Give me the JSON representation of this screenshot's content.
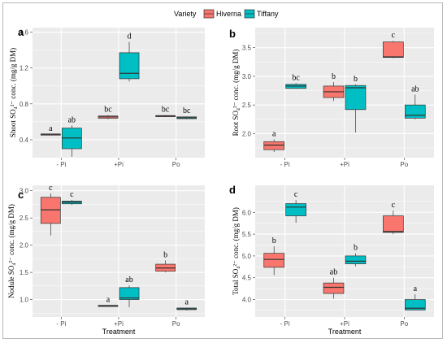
{
  "legend": {
    "title": "Variety",
    "items": [
      {
        "label": "Hiverna",
        "color": "#F8766D"
      },
      {
        "label": "Tiffany",
        "color": "#00BFC4"
      }
    ]
  },
  "colors": {
    "panel_bg": "#EBEBEB",
    "grid": "#FFFFFF",
    "outline": "#333333"
  },
  "chart_data": [
    {
      "type": "box",
      "panel": "a",
      "categories": [
        "- Pi",
        "+Pi",
        "Po"
      ],
      "ylabel": "Shoot SO₄²⁻ conc. (mg/g DM)",
      "xlabel": "",
      "ylim": [
        0.2,
        1.65
      ],
      "yticks": [
        0.4,
        0.8,
        1.2,
        1.6
      ],
      "series": [
        {
          "name": "Hiverna",
          "boxes": [
            {
              "min": 0.455,
              "q1": 0.455,
              "median": 0.46,
              "q3": 0.465,
              "max": 0.465,
              "label": "a"
            },
            {
              "min": 0.63,
              "q1": 0.64,
              "median": 0.655,
              "q3": 0.665,
              "max": 0.675,
              "label": "bc"
            },
            {
              "min": 0.655,
              "q1": 0.66,
              "median": 0.665,
              "q3": 0.67,
              "max": 0.675,
              "label": "bc"
            }
          ]
        },
        {
          "name": "Tiffany",
          "boxes": [
            {
              "min": 0.21,
              "q1": 0.3,
              "median": 0.42,
              "q3": 0.53,
              "max": 0.56,
              "label": "ab"
            },
            {
              "min": 1.05,
              "q1": 1.08,
              "median": 1.14,
              "q3": 1.37,
              "max": 1.49,
              "label": "d"
            },
            {
              "min": 0.63,
              "q1": 0.635,
              "median": 0.645,
              "q3": 0.655,
              "max": 0.66,
              "label": "bc"
            }
          ]
        }
      ]
    },
    {
      "type": "box",
      "panel": "b",
      "categories": [
        "- Pi",
        "+Pi",
        "Po"
      ],
      "ylabel": "Root SO₄²⁻ conc. (mg/g DM)",
      "xlabel": "",
      "ylim": [
        1.58,
        3.85
      ],
      "yticks": [
        2.0,
        2.5,
        3.0,
        3.5
      ],
      "series": [
        {
          "name": "Hiverna",
          "boxes": [
            {
              "min": 1.68,
              "q1": 1.72,
              "median": 1.8,
              "q3": 1.86,
              "max": 1.9,
              "label": "a"
            },
            {
              "min": 2.57,
              "q1": 2.63,
              "median": 2.73,
              "q3": 2.83,
              "max": 2.9,
              "label": "b"
            },
            {
              "min": 3.32,
              "q1": 3.33,
              "median": 3.34,
              "q3": 3.6,
              "max": 3.62,
              "label": "c"
            }
          ]
        },
        {
          "name": "Tiffany",
          "boxes": [
            {
              "min": 2.78,
              "q1": 2.79,
              "median": 2.83,
              "q3": 2.86,
              "max": 2.88,
              "label": "bc"
            },
            {
              "min": 2.02,
              "q1": 2.42,
              "median": 2.8,
              "q3": 2.84,
              "max": 2.86,
              "label": "b"
            },
            {
              "min": 2.25,
              "q1": 2.27,
              "median": 2.32,
              "q3": 2.5,
              "max": 2.68,
              "label": "ab"
            }
          ]
        }
      ]
    },
    {
      "type": "box",
      "panel": "c",
      "categories": [
        "- Pi",
        "+Pi",
        "Po"
      ],
      "ylabel": "Nodule SO₄²⁻ conc. (mg/g DM)",
      "xlabel": "Treatment",
      "ylim": [
        0.68,
        3.1
      ],
      "yticks": [
        1.0,
        1.5,
        2.0,
        2.5,
        3.0
      ],
      "series": [
        {
          "name": "Hiverna",
          "boxes": [
            {
              "min": 2.18,
              "q1": 2.4,
              "median": 2.65,
              "q3": 2.88,
              "max": 2.95,
              "label": "c"
            },
            {
              "min": 0.87,
              "q1": 0.875,
              "median": 0.885,
              "q3": 0.895,
              "max": 0.9,
              "label": "a"
            },
            {
              "min": 1.5,
              "q1": 1.52,
              "median": 1.58,
              "q3": 1.65,
              "max": 1.72,
              "label": "b"
            }
          ]
        },
        {
          "name": "Tiffany",
          "boxes": [
            {
              "min": 2.74,
              "q1": 2.76,
              "median": 2.79,
              "q3": 2.81,
              "max": 2.83,
              "label": "c"
            },
            {
              "min": 0.86,
              "q1": 1.0,
              "median": 1.03,
              "q3": 1.22,
              "max": 1.26,
              "label": "ab"
            },
            {
              "min": 0.8,
              "q1": 0.815,
              "median": 0.83,
              "q3": 0.845,
              "max": 0.85,
              "label": "a"
            }
          ]
        }
      ]
    },
    {
      "type": "box",
      "panel": "d",
      "categories": [
        "- Pi",
        "+Pi",
        "Po"
      ],
      "ylabel": "Total SO₄²⁻ conc. (mg/g DM)",
      "xlabel": "Treatment",
      "ylim": [
        3.6,
        6.62
      ],
      "yticks": [
        4.0,
        4.5,
        5.0,
        5.5,
        6.0
      ],
      "series": [
        {
          "name": "Hiverna",
          "boxes": [
            {
              "min": 4.56,
              "q1": 4.74,
              "median": 4.92,
              "q3": 5.06,
              "max": 5.22,
              "label": "b"
            },
            {
              "min": 4.02,
              "q1": 4.14,
              "median": 4.28,
              "q3": 4.38,
              "max": 4.5,
              "label": "ab"
            },
            {
              "min": 5.5,
              "q1": 5.54,
              "median": 5.56,
              "q3": 5.92,
              "max": 6.04,
              "label": "c"
            }
          ]
        },
        {
          "name": "Tiffany",
          "boxes": [
            {
              "min": 5.76,
              "q1": 5.92,
              "median": 6.12,
              "q3": 6.2,
              "max": 6.28,
              "label": "c"
            },
            {
              "min": 4.76,
              "q1": 4.82,
              "median": 4.88,
              "q3": 5.0,
              "max": 5.06,
              "label": "b"
            },
            {
              "min": 3.76,
              "q1": 3.76,
              "median": 3.8,
              "q3": 4.0,
              "max": 4.12,
              "label": "a"
            }
          ]
        }
      ]
    }
  ]
}
